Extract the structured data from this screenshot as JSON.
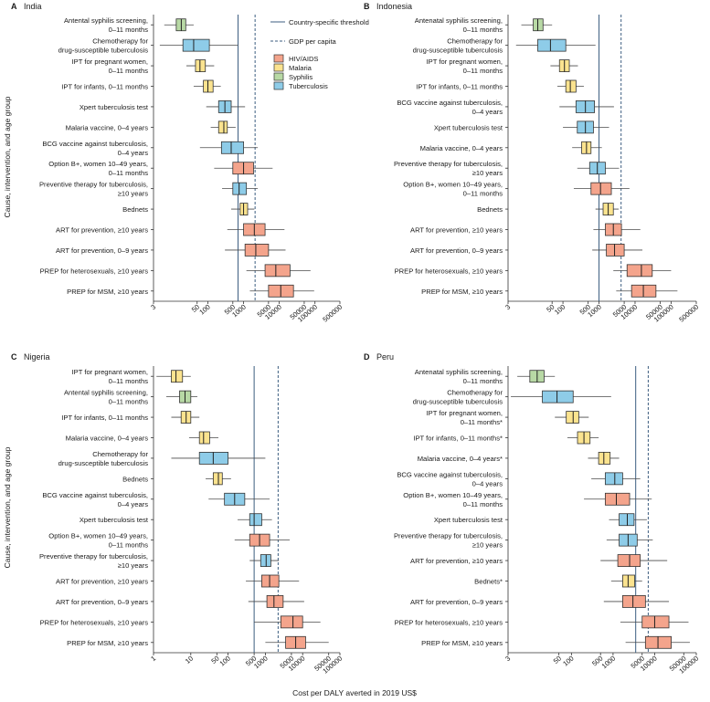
{
  "figure": {
    "xlabel": "Cost per DALY averted in 2019 US$",
    "ylabel": "Cause, intervention, and age group",
    "legend": {
      "threshold_label": "Country-specific threshold",
      "gdp_label": "GDP per capita",
      "placement": "top-right of panel A",
      "groups": [
        {
          "name": "HIV/AIDS",
          "color": "#f4a48c"
        },
        {
          "name": "Malaria",
          "color": "#fbe38f"
        },
        {
          "name": "Syphilis",
          "color": "#b8d9a5"
        },
        {
          "name": "Tuberculosis",
          "color": "#8ecce8"
        }
      ]
    },
    "colors": {
      "line": "#4a4a4a",
      "threshold": "#3c5d80",
      "gdp": "#3c5d80"
    }
  },
  "chart_data": [
    {
      "type": "boxplot",
      "panel": "A",
      "title": "India",
      "scale": "log",
      "xticks": [
        3,
        50,
        100,
        500,
        1000,
        5000,
        10000,
        50000,
        100000,
        500000
      ],
      "xlim": [
        3,
        500000
      ],
      "threshold": 700,
      "gdp": 2100,
      "rows": [
        {
          "label": [
            "Antental syphilis screening,",
            "0–11 months"
          ],
          "group": "Syphilis",
          "stats": [
            6,
            13,
            18,
            24,
            40
          ]
        },
        {
          "label": [
            "Chemotherapy for",
            "drug-susceptible tuberculosis"
          ],
          "group": "Tuberculosis",
          "stats": [
            4.5,
            20,
            40,
            110,
            700
          ]
        },
        {
          "label": [
            "IPT for pregnant women,",
            "0–11 months"
          ],
          "group": "Malaria",
          "stats": [
            25,
            45,
            60,
            85,
            150
          ]
        },
        {
          "label": [
            "IPT for infants, 0–11 months"
          ],
          "group": "Malaria",
          "stats": [
            40,
            75,
            100,
            140,
            230
          ]
        },
        {
          "label": [
            "Xpert tuberculosis test"
          ],
          "group": "Tuberculosis",
          "stats": [
            90,
            200,
            300,
            450,
            1100
          ]
        },
        {
          "label": [
            "Malaria vaccine, 0–4 years"
          ],
          "group": "Malaria",
          "stats": [
            120,
            200,
            280,
            350,
            600
          ]
        },
        {
          "label": [
            "BCG vaccine against tuberculosis,",
            "0–4 years"
          ],
          "group": "Tuberculosis",
          "stats": [
            60,
            240,
            450,
            1000,
            2500
          ]
        },
        {
          "label": [
            "Option B+, women 10–49 years,",
            "0–11 months"
          ],
          "group": "HIV/AIDS",
          "stats": [
            150,
            500,
            1000,
            1900,
            6500
          ]
        },
        {
          "label": [
            "Preventive therapy for tuberculosis,",
            "≥10 years"
          ],
          "group": "Tuberculosis",
          "stats": [
            250,
            500,
            750,
            1200,
            2500
          ]
        },
        {
          "label": [
            "Bednets"
          ],
          "group": "Malaria",
          "stats": [
            450,
            800,
            1000,
            1300,
            2000
          ]
        },
        {
          "label": [
            "ART for prevention, ≥10 years"
          ],
          "group": "HIV/AIDS",
          "stats": [
            350,
            1000,
            2000,
            4000,
            14000
          ]
        },
        {
          "label": [
            "ART for prevention, 0–9 years"
          ],
          "group": "HIV/AIDS",
          "stats": [
            300,
            1100,
            2200,
            5000,
            15000
          ]
        },
        {
          "label": [
            "PREP for heterosexuals, ≥10 years"
          ],
          "group": "HIV/AIDS",
          "stats": [
            1200,
            4000,
            8000,
            20000,
            75000
          ]
        },
        {
          "label": [
            "PREP for MSM, ≥10 years"
          ],
          "group": "HIV/AIDS",
          "stats": [
            1500,
            5000,
            11000,
            25000,
            95000
          ]
        }
      ]
    },
    {
      "type": "boxplot",
      "panel": "B",
      "title": "Indonesia",
      "scale": "log",
      "xticks": [
        3,
        50,
        100,
        500,
        1000,
        5000,
        10000,
        50000,
        100000,
        500000
      ],
      "xlim": [
        3,
        500000
      ],
      "threshold": 1000,
      "gdp": 4100,
      "rows": [
        {
          "label": [
            "Antenatal syphilis screening,",
            "0–11 months"
          ],
          "group": "Syphilis",
          "stats": [
            7,
            15,
            20,
            28,
            50
          ]
        },
        {
          "label": [
            "Chemotherapy for",
            "drug-susceptible tuberculosis"
          ],
          "group": "Tuberculosis",
          "stats": [
            5,
            20,
            45,
            120,
            800
          ]
        },
        {
          "label": [
            "IPT for pregnant women,",
            "0–11 months"
          ],
          "group": "Malaria",
          "stats": [
            45,
            80,
            110,
            150,
            260
          ]
        },
        {
          "label": [
            "IPT for infants, 0–11 months"
          ],
          "group": "Malaria",
          "stats": [
            70,
            120,
            160,
            230,
            380
          ]
        },
        {
          "label": [
            "BCG vaccine against tuberculosis,",
            "0–4 years"
          ],
          "group": "Tuberculosis",
          "stats": [
            80,
            230,
            420,
            750,
            2600
          ]
        },
        {
          "label": [
            "Xpert tuberculosis test"
          ],
          "group": "Tuberculosis",
          "stats": [
            100,
            250,
            420,
            700,
            1900
          ]
        },
        {
          "label": [
            "Malaria vaccine, 0–4 years"
          ],
          "group": "Malaria",
          "stats": [
            180,
            330,
            450,
            600,
            1200
          ]
        },
        {
          "label": [
            "Preventive therapy for tuberculosis,",
            "≥10 years"
          ],
          "group": "Tuberculosis",
          "stats": [
            250,
            550,
            900,
            1500,
            3600
          ]
        },
        {
          "label": [
            "Option B+, women 10–49 years,",
            "0–11 months"
          ],
          "group": "HIV/AIDS",
          "stats": [
            200,
            600,
            1100,
            2200,
            7000
          ]
        },
        {
          "label": [
            "Bednets"
          ],
          "group": "Malaria",
          "stats": [
            800,
            1300,
            1800,
            2500,
            3500
          ]
        },
        {
          "label": [
            "ART for prevention, ≥10 years"
          ],
          "group": "HIV/AIDS",
          "stats": [
            700,
            1500,
            2500,
            4200,
            14000
          ]
        },
        {
          "label": [
            "ART for prevention, 0–9 years"
          ],
          "group": "HIV/AIDS",
          "stats": [
            650,
            1600,
            2700,
            5000,
            16000
          ]
        },
        {
          "label": [
            "PREP for heterosexuals, ≥10 years"
          ],
          "group": "HIV/AIDS",
          "stats": [
            2500,
            6000,
            15000,
            30000,
            100000
          ]
        },
        {
          "label": [
            "PREP for MSM, ≥10 years"
          ],
          "group": "HIV/AIDS",
          "stats": [
            3000,
            8000,
            17000,
            38000,
            150000
          ]
        }
      ]
    },
    {
      "type": "boxplot",
      "panel": "C",
      "title": "Nigeria",
      "scale": "log",
      "xticks": [
        1,
        10,
        50,
        100,
        500,
        1000,
        5000,
        10000,
        50000,
        100000
      ],
      "xlim": [
        1,
        100000
      ],
      "threshold": 500,
      "gdp": 2200,
      "rows": [
        {
          "label": [
            "IPT for pregnant women,",
            "0–11 months"
          ],
          "group": "Malaria",
          "stats": [
            1.2,
            3,
            4,
            6,
            10
          ]
        },
        {
          "label": [
            "Antental syphilis screening,",
            "0–11 months"
          ],
          "group": "Syphilis",
          "stats": [
            2.2,
            5,
            7,
            10,
            15
          ]
        },
        {
          "label": [
            "IPT for infants, 0–11 months"
          ],
          "group": "Malaria",
          "stats": [
            3,
            5.5,
            7.5,
            10,
            17
          ]
        },
        {
          "label": [
            "Malaria vaccine, 0–4 years"
          ],
          "group": "Malaria",
          "stats": [
            9,
            17,
            22,
            32,
            55
          ]
        },
        {
          "label": [
            "Chemotherapy for",
            "drug-susceptible tuberculosis"
          ],
          "group": "Tuberculosis",
          "stats": [
            3,
            17,
            40,
            100,
            1000
          ]
        },
        {
          "label": [
            "Bednets"
          ],
          "group": "Malaria",
          "stats": [
            25,
            40,
            55,
            70,
            120
          ]
        },
        {
          "label": [
            "BCG vaccine against tuberculosis,",
            "0–4 years"
          ],
          "group": "Tuberculosis",
          "stats": [
            30,
            80,
            150,
            280,
            1300
          ]
        },
        {
          "label": [
            "Xpert tuberculosis test"
          ],
          "group": "Tuberculosis",
          "stats": [
            180,
            380,
            500,
            800,
            1500
          ]
        },
        {
          "label": [
            "Option B+, women 10–49 years,",
            "0–11 months"
          ],
          "group": "HIV/AIDS",
          "stats": [
            150,
            380,
            700,
            1300,
            4500
          ]
        },
        {
          "label": [
            "Preventive therapy for tuberculosis,",
            "≥10 years"
          ],
          "group": "Tuberculosis",
          "stats": [
            380,
            750,
            1050,
            1400,
            2300
          ]
        },
        {
          "label": [
            "ART for prevention, ≥10 years"
          ],
          "group": "HIV/AIDS",
          "stats": [
            300,
            800,
            1300,
            2300,
            8000
          ]
        },
        {
          "label": [
            "ART for prevention, 0–9 years"
          ],
          "group": "HIV/AIDS",
          "stats": [
            350,
            1100,
            1700,
            3000,
            11000
          ]
        },
        {
          "label": [
            "PREP for heterosexuals, ≥10 years"
          ],
          "group": "HIV/AIDS",
          "stats": [
            500,
            2600,
            5500,
            10000,
            30000
          ]
        },
        {
          "label": [
            "PREP for MSM, ≥10 years"
          ],
          "group": "HIV/AIDS",
          "stats": [
            1000,
            3500,
            6500,
            12000,
            50000
          ]
        }
      ]
    },
    {
      "type": "boxplot",
      "panel": "D",
      "title": "Peru",
      "scale": "log",
      "xticks": [
        3,
        50,
        100,
        500,
        1000,
        5000,
        10000,
        50000,
        100000
      ],
      "xlim": [
        3,
        100000
      ],
      "threshold": 3500,
      "gdp": 7000,
      "rows": [
        {
          "label": [
            "Antenatal syphilis screening,",
            "0–11 months"
          ],
          "group": "Syphilis",
          "stats": [
            5,
            10,
            15,
            22,
            40
          ]
        },
        {
          "label": [
            "Chemotherapy for",
            "drug-susceptible tuberculosis"
          ],
          "group": "Tuberculosis",
          "stats": [
            3.5,
            20,
            45,
            110,
            900
          ]
        },
        {
          "label": [
            "IPT for pregnant women,",
            "0–11 months*"
          ],
          "group": "Malaria",
          "stats": [
            40,
            75,
            110,
            150,
            260
          ]
        },
        {
          "label": [
            "IPT for infants, 0–11 months*"
          ],
          "group": "Malaria",
          "stats": [
            80,
            140,
            200,
            280,
            450
          ]
        },
        {
          "label": [
            "Malaria vaccine, 0–4 years*"
          ],
          "group": "Malaria",
          "stats": [
            250,
            450,
            600,
            850,
            1400
          ]
        },
        {
          "label": [
            "BCG vaccine against tuberculosis,",
            "0–4 years"
          ],
          "group": "Tuberculosis",
          "stats": [
            300,
            650,
            1100,
            1700,
            4500
          ]
        },
        {
          "label": [
            "Option B+, women 10–49 years,",
            "0–11 months"
          ],
          "group": "HIV/AIDS",
          "stats": [
            200,
            650,
            1200,
            2500,
            8500
          ]
        },
        {
          "label": [
            "Xpert tuberculosis test"
          ],
          "group": "Tuberculosis",
          "stats": [
            800,
            1400,
            2200,
            3200,
            6500
          ]
        },
        {
          "label": [
            "Preventive therapy for tuberculosis,",
            "≥10 years"
          ],
          "group": "Tuberculosis",
          "stats": [
            700,
            1400,
            2300,
            3800,
            9000
          ]
        },
        {
          "label": [
            "ART for prevention, ≥10 years"
          ],
          "group": "HIV/AIDS",
          "stats": [
            500,
            1300,
            2500,
            4500,
            20000
          ]
        },
        {
          "label": [
            "Bednets*"
          ],
          "group": "Malaria",
          "stats": [
            900,
            1700,
            2300,
            3300,
            5000
          ]
        },
        {
          "label": [
            "ART for prevention, 0–9 years"
          ],
          "group": "HIV/AIDS",
          "stats": [
            600,
            1700,
            3000,
            6000,
            22000
          ]
        },
        {
          "label": [
            "PREP for heterosexuals, ≥10 years"
          ],
          "group": "HIV/AIDS",
          "stats": [
            1500,
            5000,
            10000,
            22000,
            65000
          ]
        },
        {
          "label": [
            "PREP for MSM, ≥10 years"
          ],
          "group": "HIV/AIDS",
          "stats": [
            2000,
            6000,
            12000,
            25000,
            70000
          ]
        }
      ]
    }
  ]
}
